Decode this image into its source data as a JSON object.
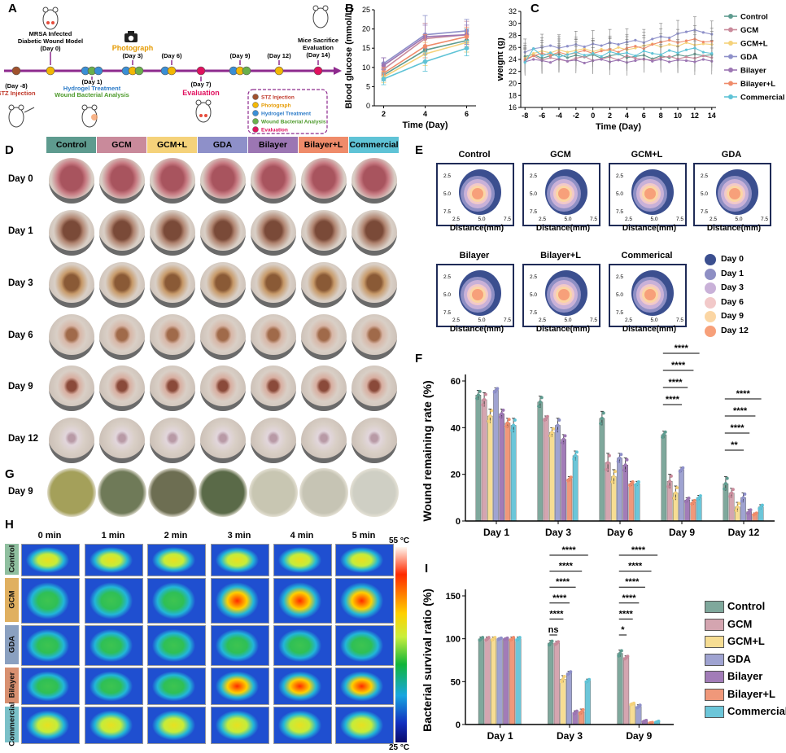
{
  "panels": {
    "A": "A",
    "B": "B",
    "C": "C",
    "D": "D",
    "E": "E",
    "F": "F",
    "G": "G",
    "H": "H",
    "I": "I"
  },
  "timeline": {
    "top_labels": [
      {
        "id": "day0",
        "text": "MRSA Infected\nDiabetic Wound Model\n(Day 0)"
      },
      {
        "id": "photo",
        "text": "Photograph\n(Day 3)"
      },
      {
        "id": "day6",
        "text": "(Day 6)"
      },
      {
        "id": "day9",
        "text": "(Day 9)"
      },
      {
        "id": "day12",
        "text": "(Day 12)"
      },
      {
        "id": "day14",
        "text": "Mice Sacrifice\nEvaluation\n(Day 14)"
      }
    ],
    "bottom_labels": {
      "day_m8": "(Day -8)",
      "stz": "STZ Injection",
      "day1": "(Day 1)",
      "hydrogel": "Hydrogel Treatment",
      "wound_bact": "Wound Bacterial Analysis",
      "day7": "(Day 7)",
      "evaluation": "Evaluation"
    },
    "legend": [
      {
        "text": "STZ Injection",
        "color": "#a0522d",
        "textcolor": "#c0392b"
      },
      {
        "text": "Photograph",
        "color": "#f2b705",
        "textcolor": "#e59a00"
      },
      {
        "text": "Hydrogel Treatment",
        "color": "#3a8fd6",
        "textcolor": "#2c7bc8"
      },
      {
        "text": "Wound Bacterial Analysis",
        "color": "#6ab04c",
        "textcolor": "#4d9a2b"
      },
      {
        "text": "Evaluation",
        "color": "#e0115f",
        "textcolor": "#e0115f"
      }
    ]
  },
  "groups": [
    {
      "name": "Control",
      "color": "#5e9b8f",
      "bar": "#7fa89c"
    },
    {
      "name": "GCM",
      "color": "#c98a9b",
      "bar": "#d4a5b0"
    },
    {
      "name": "GCM+L",
      "color": "#f5d27a",
      "bar": "#f6dd93"
    },
    {
      "name": "GDA",
      "color": "#8e90c9",
      "bar": "#9fa3d1"
    },
    {
      "name": "Bilayer",
      "color": "#9c76b3",
      "bar": "#a27cb8"
    },
    {
      "name": "Bilayer+L",
      "color": "#ef8b6a",
      "bar": "#f0987a"
    },
    {
      "name": "Commercial",
      "color": "#5fc3d6",
      "bar": "#6cc6d9"
    }
  ],
  "panelD": {
    "days": [
      "Day 0",
      "Day 1",
      "Day 3",
      "Day 6",
      "Day 9",
      "Day 12"
    ]
  },
  "panelG": {
    "day": "Day 9"
  },
  "panelE": {
    "boxes": [
      "Control",
      "GCM",
      "GCM+L",
      "GDA",
      "Bilayer",
      "Bilayer+L",
      "Commerical"
    ],
    "xlabel": "Distance(mm)",
    "ticks_x": [
      "2.5",
      "5.0",
      "7.5"
    ],
    "ticks_y": [
      "2.5",
      "5.0",
      "7.5"
    ],
    "legend": [
      {
        "text": "Day 0",
        "color": "#3b4f8f"
      },
      {
        "text": "Day 1",
        "color": "#8e8fc4"
      },
      {
        "text": "Day 3",
        "color": "#c9b1d8"
      },
      {
        "text": "Day 6",
        "color": "#f2c9c9"
      },
      {
        "text": "Day 9",
        "color": "#fbd6a4"
      },
      {
        "text": "Day 12",
        "color": "#f7a07a"
      }
    ]
  },
  "panelH": {
    "times": [
      "0 min",
      "1 min",
      "2 min",
      "3 min",
      "4 min",
      "5 min"
    ],
    "rows": [
      "Control",
      "GCM",
      "GDA",
      "Bilayer",
      "Commercial"
    ],
    "scale_top": "55 °C",
    "scale_bottom": "25 °C"
  },
  "chart_data": [
    {
      "panel": "B",
      "type": "line",
      "xlabel": "Time (Day)",
      "ylabel": "Blood glucose (mmol/L)",
      "x": [
        2,
        4,
        6
      ],
      "xticks": [
        "2",
        "4",
        "6"
      ],
      "ylim": [
        0,
        25
      ],
      "yticks": [
        "0",
        "5",
        "10",
        "15",
        "20",
        "25"
      ],
      "series": [
        {
          "values": [
            8.0,
            14.5,
            17.0
          ],
          "err": [
            1.5,
            3.0,
            3.0
          ]
        },
        {
          "values": [
            9.5,
            17.5,
            18.5
          ],
          "err": [
            1.5,
            4.0,
            3.5
          ]
        },
        {
          "values": [
            7.5,
            13.5,
            16.5
          ],
          "err": [
            1.5,
            3.0,
            2.5
          ]
        },
        {
          "values": [
            11.0,
            18.5,
            19.5
          ],
          "err": [
            1.5,
            5.0,
            3.0
          ]
        },
        {
          "values": [
            10.5,
            18.0,
            18.5
          ],
          "err": [
            2.0,
            3.0,
            2.5
          ]
        },
        {
          "values": [
            8.5,
            15.5,
            18.0
          ],
          "err": [
            1.5,
            3.0,
            2.5
          ]
        },
        {
          "values": [
            7.0,
            11.5,
            15.0
          ],
          "err": [
            1.5,
            2.5,
            2.0
          ]
        }
      ]
    },
    {
      "panel": "C",
      "type": "line",
      "xlabel": "Time (Day)",
      "ylabel": "Weight (g)",
      "x": [
        -8,
        -7,
        -6,
        -5,
        -4,
        -3,
        -2,
        -1,
        0,
        1,
        2,
        3,
        4,
        5,
        6,
        7,
        8,
        9,
        10,
        11,
        12,
        13,
        14
      ],
      "xticks": [
        "-8",
        "-6",
        "-4",
        "-2",
        "0",
        "2",
        "4",
        "6",
        "8",
        "10",
        "12",
        "14"
      ],
      "ylim": [
        16,
        32
      ],
      "yticks": [
        "16",
        "18",
        "20",
        "22",
        "24",
        "26",
        "28",
        "30",
        "32"
      ],
      "series": [
        {
          "name": "Control",
          "values": [
            24.5,
            24.8,
            24.2,
            24.6,
            24.9,
            24.3,
            24.7,
            24.4,
            24.8,
            24.2,
            24.6,
            24.9,
            24.3,
            24.5,
            24.7,
            24.1,
            24.6,
            24.3,
            24.8,
            24.5,
            24.9,
            24.6,
            24.8
          ]
        },
        {
          "name": "GCM",
          "values": [
            23.8,
            24.6,
            23.9,
            24.3,
            24.0,
            23.7,
            24.2,
            24.5,
            23.8,
            24.1,
            24.4,
            23.9,
            24.6,
            24.2,
            24.0,
            23.9,
            24.3,
            24.5,
            24.1,
            24.4,
            24.2,
            24.6,
            24.3
          ]
        },
        {
          "name": "GCM+L",
          "values": [
            24.2,
            25.0,
            25.4,
            25.1,
            25.6,
            25.2,
            25.5,
            25.8,
            25.3,
            25.7,
            25.4,
            26.0,
            25.6,
            25.9,
            26.3,
            26.6,
            26.1,
            26.5,
            26.2,
            26.8,
            26.4,
            26.6,
            26.5
          ]
        },
        {
          "name": "GDA",
          "values": [
            25.2,
            25.8,
            26.0,
            26.3,
            25.9,
            26.2,
            26.5,
            26.1,
            26.6,
            26.3,
            26.8,
            26.5,
            26.9,
            27.2,
            26.8,
            27.4,
            27.8,
            27.6,
            28.3,
            28.6,
            28.9,
            28.5,
            28.2
          ]
        },
        {
          "name": "Bilayer",
          "values": [
            23.6,
            24.0,
            23.8,
            23.5,
            24.1,
            23.7,
            23.9,
            23.4,
            23.8,
            24.0,
            23.6,
            23.9,
            23.5,
            23.8,
            24.1,
            23.7,
            24.0,
            23.6,
            23.9,
            23.8,
            23.6,
            24.0,
            23.7
          ]
        },
        {
          "name": "Bilayer+L",
          "values": [
            24.0,
            24.6,
            25.0,
            24.7,
            25.2,
            24.8,
            25.1,
            25.5,
            25.0,
            25.4,
            25.7,
            25.2,
            25.9,
            26.2,
            25.8,
            26.5,
            26.9,
            27.2,
            26.8,
            27.1,
            27.4,
            26.9,
            27.0
          ]
        },
        {
          "name": "Commercial",
          "values": [
            23.5,
            25.8,
            24.6,
            25.1,
            24.4,
            24.8,
            25.2,
            24.7,
            25.0,
            24.5,
            25.3,
            24.9,
            25.1,
            24.6,
            25.4,
            25.0,
            24.8,
            25.5,
            25.1,
            25.6,
            25.9,
            25.2,
            25.0
          ]
        }
      ]
    },
    {
      "panel": "F",
      "type": "bar",
      "ylabel": "Wound remaining rate (%)",
      "categories": [
        "Day 1",
        "Day 3",
        "Day 6",
        "Day 9",
        "Day 12"
      ],
      "ylim": [
        0,
        60
      ],
      "yticks": [
        "0",
        "20",
        "40",
        "60"
      ],
      "series": [
        {
          "values": [
            54,
            51,
            44,
            37,
            16
          ],
          "err": [
            2,
            2.5,
            3,
            1.5,
            3
          ]
        },
        {
          "values": [
            52,
            44,
            25,
            17,
            12
          ],
          "err": [
            3,
            1,
            4,
            3,
            2
          ]
        },
        {
          "values": [
            45,
            38,
            19,
            12,
            6
          ],
          "err": [
            3,
            2,
            3,
            3,
            2
          ]
        },
        {
          "values": [
            56,
            41,
            27,
            22,
            10
          ],
          "err": [
            1,
            3,
            2,
            1,
            2
          ]
        },
        {
          "values": [
            46,
            35,
            24,
            9,
            4
          ],
          "err": [
            2,
            2,
            3,
            1,
            1
          ]
        },
        {
          "values": [
            42,
            18,
            16,
            8,
            3
          ],
          "err": [
            2,
            1,
            1,
            1,
            0.5
          ]
        },
        {
          "values": [
            41,
            28,
            16,
            10,
            6
          ],
          "err": [
            3,
            2,
            1,
            1,
            1
          ]
        }
      ],
      "annotations": [
        {
          "label": "****",
          "cat": 3,
          "level": 4
        },
        {
          "label": "****",
          "cat": 3,
          "level": 3
        },
        {
          "label": "****",
          "cat": 3,
          "level": 2
        },
        {
          "label": "****",
          "cat": 3,
          "level": 1
        },
        {
          "label": "****",
          "cat": 4,
          "level": 4
        },
        {
          "label": "****",
          "cat": 4,
          "level": 3
        },
        {
          "label": "****",
          "cat": 4,
          "level": 2
        },
        {
          "label": "**",
          "cat": 4,
          "level": 1
        }
      ]
    },
    {
      "panel": "I",
      "type": "bar",
      "ylabel": "Bacterial survival ratio (%)",
      "categories": [
        "Day 1",
        "Day 3",
        "Day 9"
      ],
      "ylim": [
        0,
        150
      ],
      "yticks": [
        "0",
        "50",
        "100",
        "150"
      ],
      "series": [
        {
          "name": "Control",
          "values": [
            100,
            95,
            83
          ],
          "err": [
            2,
            3,
            4
          ]
        },
        {
          "name": "GCM",
          "values": [
            100,
            95,
            78
          ],
          "err": [
            2,
            2,
            2
          ]
        },
        {
          "name": "GCM+L",
          "values": [
            100,
            53,
            24
          ],
          "err": [
            2,
            4,
            1
          ]
        },
        {
          "name": "GDA",
          "values": [
            100,
            60,
            21
          ],
          "err": [
            1,
            2,
            2
          ]
        },
        {
          "name": "Bilayer",
          "values": [
            100,
            14,
            4
          ],
          "err": [
            1,
            2,
            1
          ]
        },
        {
          "name": "Bilayer+L",
          "values": [
            100,
            15,
            2
          ],
          "err": [
            2,
            3,
            0.5
          ]
        },
        {
          "name": "Commercial",
          "values": [
            100,
            51,
            3
          ],
          "err": [
            2,
            2,
            1
          ]
        }
      ],
      "annotations": [
        {
          "label": "****",
          "cat": 1,
          "level": 5
        },
        {
          "label": "****",
          "cat": 1,
          "level": 4
        },
        {
          "label": "****",
          "cat": 1,
          "level": 3
        },
        {
          "label": "****",
          "cat": 1,
          "level": 2
        },
        {
          "label": "****",
          "cat": 1,
          "level": 1
        },
        {
          "label": "ns",
          "cat": 1,
          "level": 0
        },
        {
          "label": "****",
          "cat": 2,
          "level": 5
        },
        {
          "label": "****",
          "cat": 2,
          "level": 4
        },
        {
          "label": "****",
          "cat": 2,
          "level": 3
        },
        {
          "label": "****",
          "cat": 2,
          "level": 2
        },
        {
          "label": "****",
          "cat": 2,
          "level": 1
        },
        {
          "label": "*",
          "cat": 2,
          "level": 0
        }
      ]
    }
  ]
}
